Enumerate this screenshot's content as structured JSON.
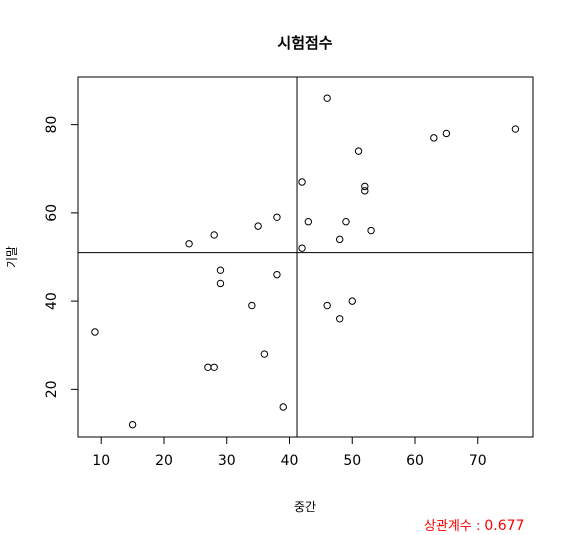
{
  "chart_data": {
    "type": "scatter",
    "title": "시험점수",
    "xlabel": "중간",
    "ylabel": "기말",
    "xlim": [
      6.3,
      78.8
    ],
    "ylim": [
      9.2,
      90.8
    ],
    "x_ticks": [
      10,
      20,
      30,
      40,
      50,
      60,
      70
    ],
    "y_ticks": [
      20,
      40,
      60,
      80
    ],
    "reference_lines": {
      "vline_x": 41.2,
      "hline_y": 51
    },
    "points": [
      {
        "x": 9,
        "y": 33
      },
      {
        "x": 15,
        "y": 12
      },
      {
        "x": 24,
        "y": 53
      },
      {
        "x": 27,
        "y": 25
      },
      {
        "x": 28,
        "y": 25
      },
      {
        "x": 28,
        "y": 55
      },
      {
        "x": 29,
        "y": 47
      },
      {
        "x": 29,
        "y": 44
      },
      {
        "x": 34,
        "y": 39
      },
      {
        "x": 35,
        "y": 57
      },
      {
        "x": 36,
        "y": 28
      },
      {
        "x": 38,
        "y": 59
      },
      {
        "x": 38,
        "y": 46
      },
      {
        "x": 39,
        "y": 16
      },
      {
        "x": 42,
        "y": 67
      },
      {
        "x": 42,
        "y": 52
      },
      {
        "x": 43,
        "y": 58
      },
      {
        "x": 46,
        "y": 86
      },
      {
        "x": 46,
        "y": 39
      },
      {
        "x": 48,
        "y": 54
      },
      {
        "x": 48,
        "y": 36
      },
      {
        "x": 49,
        "y": 58
      },
      {
        "x": 50,
        "y": 40
      },
      {
        "x": 51,
        "y": 74
      },
      {
        "x": 52,
        "y": 66
      },
      {
        "x": 52,
        "y": 65
      },
      {
        "x": 53,
        "y": 56
      },
      {
        "x": 63,
        "y": 77
      },
      {
        "x": 65,
        "y": 78
      },
      {
        "x": 76,
        "y": 79
      }
    ],
    "grid": false,
    "legend": "none"
  },
  "correlation": {
    "label": "상관계수 :",
    "value": "0.677",
    "color": "#ff0000"
  }
}
